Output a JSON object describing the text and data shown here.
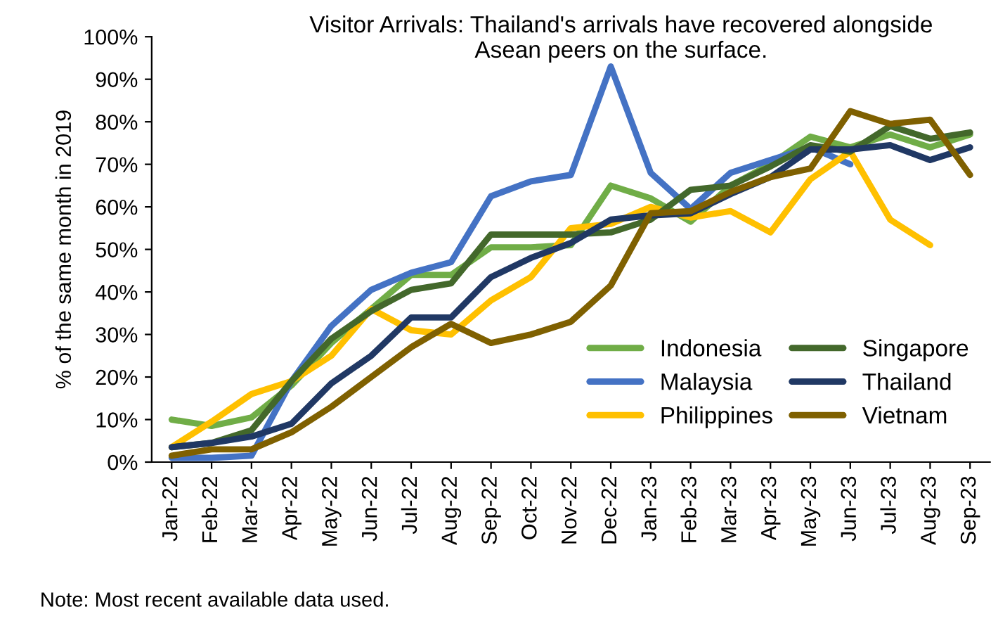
{
  "chart_data": {
    "type": "line",
    "title": "Visitor Arrivals: Thailand's arrivals have recovered alongside\nAsean peers on the surface.",
    "ylabel": "% of the same month in 2019",
    "categories": [
      "Jan-22",
      "Feb-22",
      "Mar-22",
      "Apr-22",
      "May-22",
      "Jun-22",
      "Jul-22",
      "Aug-22",
      "Sep-22",
      "Oct-22",
      "Nov-22",
      "Dec-22",
      "Jan-23",
      "Feb-23",
      "Mar-23",
      "Apr-23",
      "May-23",
      "Jun-23",
      "Jul-23",
      "Aug-23",
      "Sep-23"
    ],
    "series": [
      {
        "name": "Indonesia",
        "color": "#70ad47",
        "values": [
          10,
          8.5,
          10.5,
          18,
          28,
          36,
          44,
          44,
          50.5,
          50.5,
          51,
          65,
          62,
          56.5,
          65,
          70,
          76.5,
          74,
          77,
          74,
          77
        ]
      },
      {
        "name": "Malaysia",
        "color": "#4472c4",
        "values": [
          1,
          1,
          1.5,
          19,
          32,
          40.5,
          44.5,
          47,
          62.5,
          66,
          67.5,
          93,
          68,
          59.5,
          68,
          71,
          74,
          70,
          null,
          null,
          null
        ]
      },
      {
        "name": "Philippines",
        "color": "#ffc000",
        "values": [
          3.5,
          9.5,
          16,
          19,
          25,
          36,
          31,
          30,
          38,
          43.5,
          55,
          56,
          60,
          57.5,
          59,
          54,
          66.5,
          73,
          57,
          51,
          null
        ]
      },
      {
        "name": "Singapore",
        "color": "#43682b",
        "values": [
          3.5,
          4.5,
          7.5,
          19,
          29,
          35.5,
          40.5,
          42,
          53.5,
          53.5,
          53.5,
          54,
          57,
          64,
          65,
          69.5,
          74.5,
          73,
          79,
          76,
          77.5
        ]
      },
      {
        "name": "Thailand",
        "color": "#203864",
        "values": [
          3.5,
          4.5,
          6,
          9,
          18.5,
          25,
          34,
          34,
          43.5,
          48,
          51.5,
          57,
          58,
          58.5,
          63,
          67,
          73.5,
          73.5,
          74.5,
          71,
          74
        ]
      },
      {
        "name": "Vietnam",
        "color": "#7f6000",
        "values": [
          1.5,
          3,
          3,
          7,
          13,
          20,
          27,
          32.5,
          28,
          30,
          33,
          41.5,
          58.5,
          59,
          63.5,
          67,
          69,
          82.5,
          79.5,
          80.5,
          67.5
        ]
      }
    ],
    "ylim": [
      0,
      100
    ],
    "yticks": [
      {
        "value": 0,
        "label": "0%"
      },
      {
        "value": 10,
        "label": "10%"
      },
      {
        "value": 20,
        "label": "20%"
      },
      {
        "value": 30,
        "label": "30%"
      },
      {
        "value": 40,
        "label": "40%"
      },
      {
        "value": 50,
        "label": "50%"
      },
      {
        "value": 60,
        "label": "60%"
      },
      {
        "value": 70,
        "label": "70%"
      },
      {
        "value": 80,
        "label": "80%"
      },
      {
        "value": 90,
        "label": "90%"
      },
      {
        "value": 100,
        "label": "100%"
      }
    ],
    "legend": "bottom right",
    "marker": "none",
    "line_style": "solid",
    "annotations": [
      "Note: Most recent available data used."
    ]
  }
}
